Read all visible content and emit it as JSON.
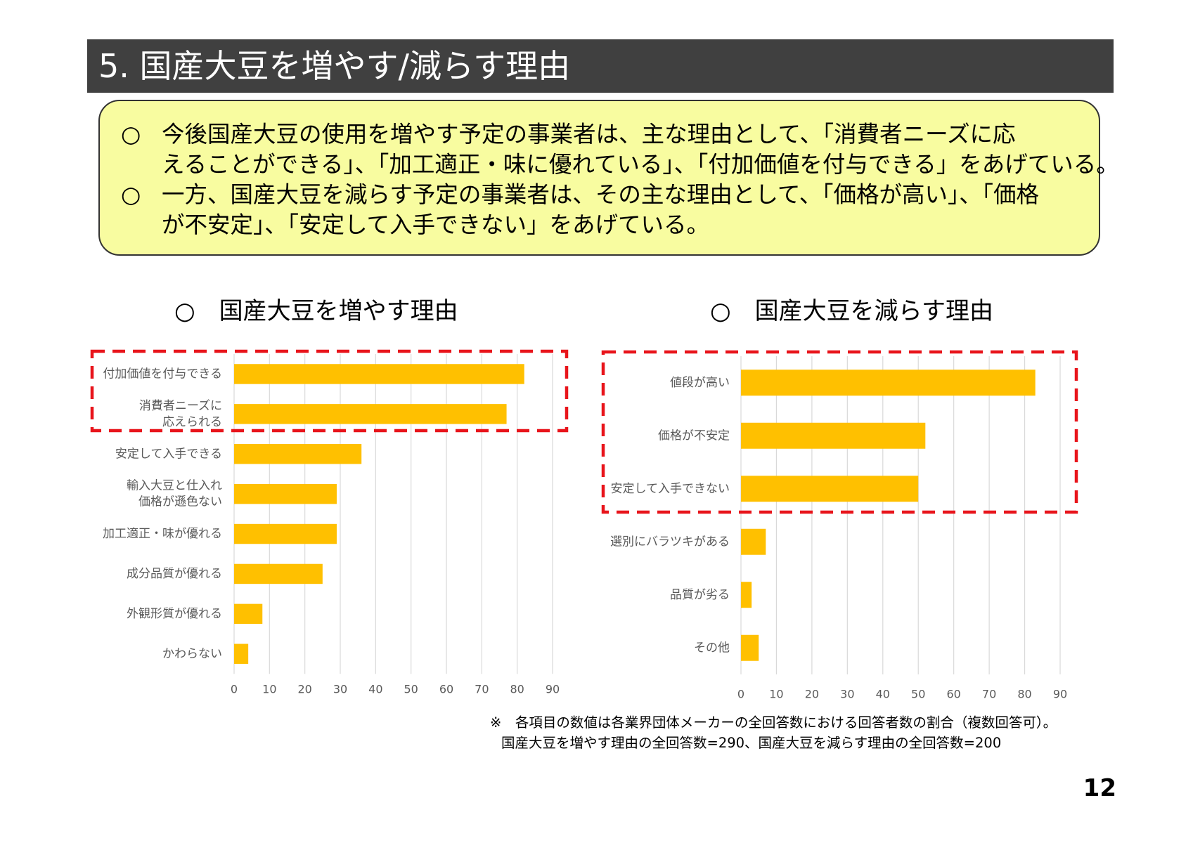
{
  "header": {
    "title": "5. 国産大豆を増やす/減らす理由"
  },
  "summary": {
    "bullet_symbol": "○",
    "para1_line1": "今後国産大豆の使用を増やす予定の事業者は、主な理由として、「消費者ニーズに応",
    "para1_line2": "えることができる」、「加工適正・味に優れている」、「付加価値を付与できる」をあげている。",
    "para2_line1": "一方、国産大豆を減らす予定の事業者は、その主な理由として、「価格が高い」、「価格",
    "para2_line2": "が不安定」、「安定して入手できない」をあげている。"
  },
  "colors": {
    "bar": "#FFC000",
    "highlight": "#E8141B",
    "grid": "#D9D9D9",
    "title_bar": "#404040",
    "summary_bg": "#F8FCA0"
  },
  "chart_data": [
    {
      "type": "bar",
      "orientation": "horizontal",
      "title": "○　国産大豆を増やす理由",
      "categories": [
        [
          "付加価値を付与できる"
        ],
        [
          "消費者ニーズに",
          "応えられる"
        ],
        [
          "安定して入手できる"
        ],
        [
          "輸入大豆と仕入れ",
          "価格が遜色ない"
        ],
        [
          "加工適正・味が優れる"
        ],
        [
          "成分品質が優れる"
        ],
        [
          "外観形質が優れる"
        ],
        [
          "かわらない"
        ]
      ],
      "values": [
        82,
        77,
        36,
        29,
        29,
        25,
        8,
        4
      ],
      "xlim": [
        0,
        90
      ],
      "xticks": [
        0,
        10,
        20,
        30,
        40,
        50,
        60,
        70,
        80,
        90
      ],
      "grid": true,
      "highlighted_categories": [
        0,
        1
      ]
    },
    {
      "type": "bar",
      "orientation": "horizontal",
      "title": "○　国産大豆を減らす理由",
      "categories": [
        [
          "値段が高い"
        ],
        [
          "価格が不安定"
        ],
        [
          "安定して入手できない"
        ],
        [
          "選別にバラツキがある"
        ],
        [
          "品質が劣る"
        ],
        [
          "その他"
        ]
      ],
      "values": [
        83,
        52,
        50,
        7,
        3,
        5
      ],
      "xlim": [
        0,
        90
      ],
      "xticks": [
        0,
        10,
        20,
        30,
        40,
        50,
        60,
        70,
        80,
        90
      ],
      "grid": true,
      "highlighted_categories": [
        0,
        1,
        2
      ]
    }
  ],
  "footnote": {
    "line1": "※　各項目の数値は各業界団体メーカーの全回答数における回答者数の割合（複数回答可）。",
    "line2": "国産大豆を増やす理由の全回答数=290、国産大豆を減らす理由の全回答数=200"
  },
  "page_number": "12"
}
